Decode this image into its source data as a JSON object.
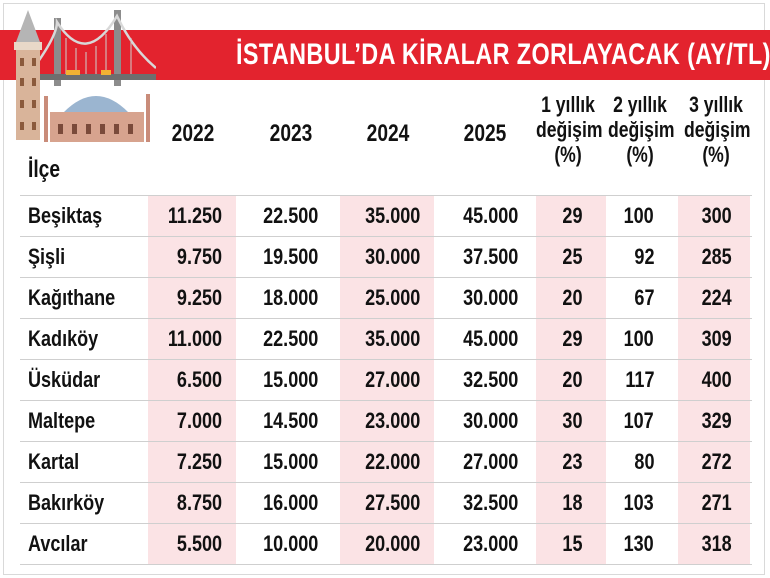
{
  "chart_data": {
    "type": "table",
    "title": "İSTANBUL’DA KİRALAR ZORLAYACAK (AY/TL)",
    "columns": [
      "İlçe",
      "2022",
      "2023",
      "2024",
      "2025",
      "1 yıllık değişim (%)",
      "2 yıllık değişim (%)",
      "3 yıllık değişim (%)"
    ],
    "header_lines": {
      "c1": [
        "1 yıllık",
        "değişim",
        "(%)"
      ],
      "c2": [
        "2 yıllık",
        "değişim",
        "(%)"
      ],
      "c3": [
        "3 yıllık",
        "değişim",
        "(%)"
      ]
    },
    "rows": [
      {
        "ilce": "Beşiktaş",
        "y2022": "11.250",
        "y2023": "22.500",
        "y2024": "35.000",
        "y2025": "45.000",
        "d1": "29",
        "d2": "100",
        "d3": "300"
      },
      {
        "ilce": "Şişli",
        "y2022": "9.750",
        "y2023": "19.500",
        "y2024": "30.000",
        "y2025": "37.500",
        "d1": "25",
        "d2": "92",
        "d3": "285"
      },
      {
        "ilce": "Kağıthane",
        "y2022": "9.250",
        "y2023": "18.000",
        "y2024": "25.000",
        "y2025": "30.000",
        "d1": "20",
        "d2": "67",
        "d3": "224"
      },
      {
        "ilce": "Kadıköy",
        "y2022": "11.000",
        "y2023": "22.500",
        "y2024": "35.000",
        "y2025": "45.000",
        "d1": "29",
        "d2": "100",
        "d3": "309"
      },
      {
        "ilce": "Üsküdar",
        "y2022": "6.500",
        "y2023": "15.000",
        "y2024": "27.000",
        "y2025": "32.500",
        "d1": "20",
        "d2": "117",
        "d3": "400"
      },
      {
        "ilce": "Maltepe",
        "y2022": "7.000",
        "y2023": "14.500",
        "y2024": "23.000",
        "y2025": "30.000",
        "d1": "30",
        "d2": "107",
        "d3": "329"
      },
      {
        "ilce": "Kartal",
        "y2022": "7.250",
        "y2023": "15.000",
        "y2024": "22.000",
        "y2025": "27.000",
        "d1": "23",
        "d2": "80",
        "d3": "272"
      },
      {
        "ilce": "Bakırköy",
        "y2022": "8.750",
        "y2023": "16.000",
        "y2024": "27.500",
        "y2025": "32.500",
        "d1": "18",
        "d2": "103",
        "d3": "271"
      },
      {
        "ilce": "Avcılar",
        "y2022": "5.500",
        "y2023": "10.000",
        "y2024": "20.000",
        "y2025": "23.000",
        "d1": "15",
        "d2": "130",
        "d3": "318"
      }
    ]
  },
  "colors": {
    "banner": "#e3232e",
    "row_shade": "#fbe3e5",
    "text": "#111111"
  },
  "illustration": {
    "icons": [
      "galata-tower-icon",
      "bosphorus-bridge-icon",
      "hagia-sophia-icon"
    ]
  }
}
